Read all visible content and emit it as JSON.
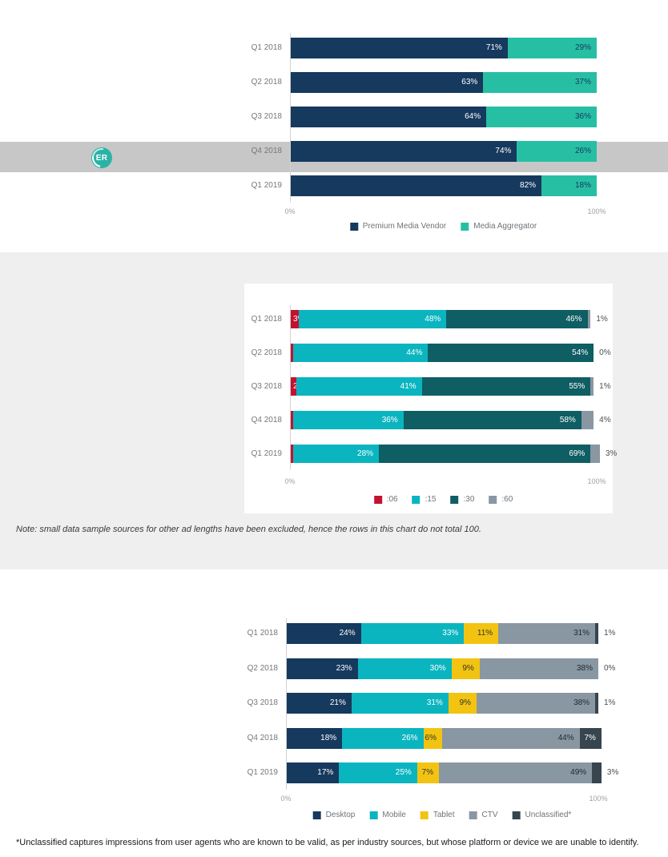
{
  "page": {
    "background": "#ffffff",
    "band_color": "#c7c7c7",
    "section_color": "#f0efef"
  },
  "logo": {
    "text": "ER",
    "color": "#2ab3a6"
  },
  "notes": {
    "middle": "Note: small data sample sources for other ad lengths have been excluded, hence the rows in this chart do not total 100.",
    "footnote": "*Unclassified captures impressions from user agents who are known to be valid, as per industry sources, but whose platform or device we are unable to identify."
  },
  "chart_data": [
    {
      "type": "bar",
      "orientation": "horizontal",
      "stacked": true,
      "title": "",
      "categories": [
        "Q1 2018",
        "Q2 2018",
        "Q3 2018",
        "Q4 2018",
        "Q1 2019"
      ],
      "series": [
        {
          "name": "Premium Media Vendor",
          "color": "#16395e",
          "label_color": "#ffffff",
          "values": [
            71,
            63,
            64,
            74,
            82
          ]
        },
        {
          "name": "Media Aggregator",
          "color": "#27bfa3",
          "label_color": "#16395e",
          "values": [
            29,
            37,
            36,
            26,
            18
          ]
        }
      ],
      "xlim": [
        0,
        100
      ],
      "x_ticks": [
        "0%",
        "100%"
      ],
      "legend_position": "bottom"
    },
    {
      "type": "bar",
      "orientation": "horizontal",
      "stacked": true,
      "title": "",
      "categories": [
        "Q1 2018",
        "Q2 2018",
        "Q3 2018",
        "Q4 2018",
        "Q1 2019"
      ],
      "series": [
        {
          "name": ":06",
          "color": "#c2122f",
          "label_color": "#ffffff",
          "values": [
            3,
            1,
            2,
            1,
            1
          ]
        },
        {
          "name": ":15",
          "color": "#0ab5c0",
          "label_color": "#ffffff",
          "values": [
            48,
            44,
            41,
            36,
            28
          ]
        },
        {
          "name": ":30",
          "color": "#0e5e63",
          "label_color": "#ffffff",
          "values": [
            46,
            54,
            55,
            58,
            69
          ]
        },
        {
          "name": ":60",
          "color": "#8997a3",
          "label_color": "#313c44",
          "values": [
            1,
            0,
            1,
            4,
            3
          ]
        }
      ],
      "xlim": [
        0,
        100
      ],
      "x_ticks": [
        "0%",
        "100%"
      ],
      "legend_position": "bottom"
    },
    {
      "type": "bar",
      "orientation": "horizontal",
      "stacked": true,
      "title": "",
      "categories": [
        "Q1 2018",
        "Q2 2018",
        "Q3 2018",
        "Q4 2018",
        "Q1 2019"
      ],
      "series": [
        {
          "name": "Desktop",
          "color": "#16395e",
          "label_color": "#ffffff",
          "values": [
            24,
            23,
            21,
            18,
            17
          ]
        },
        {
          "name": "Mobile",
          "color": "#0ab5c0",
          "label_color": "#ffffff",
          "values": [
            33,
            30,
            31,
            26,
            25
          ]
        },
        {
          "name": "Tablet",
          "color": "#f2c411",
          "label_color": "#333333",
          "values": [
            11,
            9,
            9,
            6,
            7
          ]
        },
        {
          "name": "CTV",
          "color": "#8997a3",
          "label_color": "#1d2930",
          "values": [
            31,
            38,
            38,
            44,
            49
          ]
        },
        {
          "name": "Unclassified*",
          "color": "#36454e",
          "label_color": "#ffffff",
          "values": [
            1,
            0,
            1,
            7,
            3
          ]
        }
      ],
      "xlim": [
        0,
        100
      ],
      "x_ticks": [
        "0%",
        "100%"
      ],
      "legend_position": "bottom"
    }
  ]
}
